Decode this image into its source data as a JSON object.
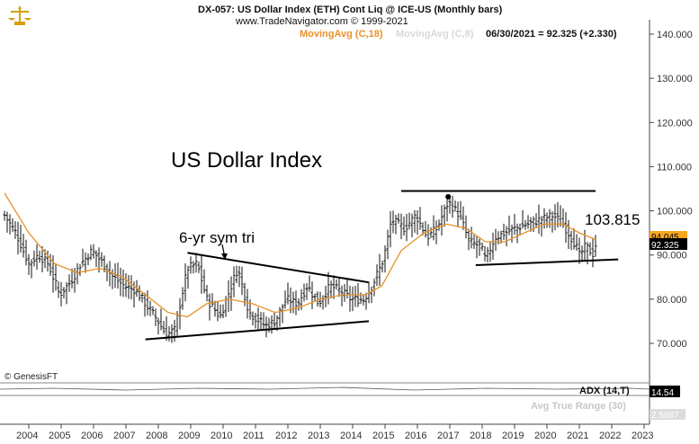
{
  "header": {
    "title": "DX-057:  US Dollar Index (ETH) Cont Liq @ ICE-US  (Monthly bars)",
    "source": "www.TradeNavigator.com © 1999-2021",
    "ma18_label": "MovingAvg (C,18)",
    "ma8_label": "MovingAvg (C,8)",
    "last_quote": "06/30/2021 = 92.325 (+2.330)"
  },
  "copyright": "© GenesisFT",
  "colors": {
    "ma18": "#e8922a",
    "ma8": "#bfbfbf",
    "bars": "#111111",
    "price_tag": "#000000",
    "ma_tag": "#f5a623"
  },
  "chart_data": {
    "type": "ohlc",
    "title": "US Dollar Index",
    "bar_interval": "monthly",
    "x_ticks": [
      "2004",
      "2005",
      "2006",
      "2007",
      "2008",
      "2009",
      "2010",
      "2011",
      "2012",
      "2013",
      "2014",
      "2015",
      "2016",
      "2017",
      "2018",
      "2019",
      "2020",
      "2021",
      "2022",
      "2023"
    ],
    "y_ticks": [
      "70.000",
      "80.000",
      "90.000",
      "100.000",
      "110.000",
      "120.000",
      "130.000",
      "140.000"
    ],
    "ylim": [
      64,
      142
    ],
    "xlim": [
      2003.2,
      2023.5
    ],
    "price_series": [
      {
        "t": 2003.25,
        "v": 99
      },
      {
        "t": 2003.6,
        "v": 95
      },
      {
        "t": 2004.0,
        "v": 88
      },
      {
        "t": 2004.3,
        "v": 90
      },
      {
        "t": 2004.6,
        "v": 88
      },
      {
        "t": 2004.95,
        "v": 81
      },
      {
        "t": 2005.3,
        "v": 84
      },
      {
        "t": 2005.6,
        "v": 88
      },
      {
        "t": 2005.95,
        "v": 91
      },
      {
        "t": 2006.3,
        "v": 88
      },
      {
        "t": 2006.6,
        "v": 85
      },
      {
        "t": 2006.95,
        "v": 83
      },
      {
        "t": 2007.3,
        "v": 82
      },
      {
        "t": 2007.6,
        "v": 79
      },
      {
        "t": 2007.9,
        "v": 76
      },
      {
        "t": 2008.25,
        "v": 72
      },
      {
        "t": 2008.5,
        "v": 73
      },
      {
        "t": 2008.9,
        "v": 87
      },
      {
        "t": 2009.2,
        "v": 88
      },
      {
        "t": 2009.5,
        "v": 80
      },
      {
        "t": 2009.9,
        "v": 76
      },
      {
        "t": 2010.1,
        "v": 80
      },
      {
        "t": 2010.45,
        "v": 87
      },
      {
        "t": 2010.8,
        "v": 77
      },
      {
        "t": 2011.3,
        "v": 74
      },
      {
        "t": 2011.6,
        "v": 75
      },
      {
        "t": 2011.95,
        "v": 80
      },
      {
        "t": 2012.3,
        "v": 79
      },
      {
        "t": 2012.6,
        "v": 83
      },
      {
        "t": 2012.95,
        "v": 79
      },
      {
        "t": 2013.3,
        "v": 83
      },
      {
        "t": 2013.6,
        "v": 82
      },
      {
        "t": 2013.95,
        "v": 80
      },
      {
        "t": 2014.35,
        "v": 80
      },
      {
        "t": 2014.6,
        "v": 83
      },
      {
        "t": 2014.95,
        "v": 89
      },
      {
        "t": 2015.2,
        "v": 98
      },
      {
        "t": 2015.6,
        "v": 96
      },
      {
        "t": 2015.95,
        "v": 99
      },
      {
        "t": 2016.3,
        "v": 94
      },
      {
        "t": 2016.6,
        "v": 96
      },
      {
        "t": 2016.95,
        "v": 102
      },
      {
        "t": 2017.3,
        "v": 99
      },
      {
        "t": 2017.6,
        "v": 93
      },
      {
        "t": 2017.95,
        "v": 92
      },
      {
        "t": 2018.1,
        "v": 89
      },
      {
        "t": 2018.4,
        "v": 94
      },
      {
        "t": 2018.7,
        "v": 95
      },
      {
        "t": 2019.0,
        "v": 96
      },
      {
        "t": 2019.4,
        "v": 97
      },
      {
        "t": 2019.8,
        "v": 98
      },
      {
        "t": 2020.2,
        "v": 99
      },
      {
        "t": 2020.5,
        "v": 97
      },
      {
        "t": 2020.9,
        "v": 92
      },
      {
        "t": 2021.0,
        "v": 90
      },
      {
        "t": 2021.2,
        "v": 92
      },
      {
        "t": 2021.45,
        "v": 90
      },
      {
        "t": 2021.5,
        "v": 92.3
      }
    ],
    "ma18_series": [
      {
        "t": 2003.25,
        "v": 104
      },
      {
        "t": 2004.0,
        "v": 95
      },
      {
        "t": 2004.8,
        "v": 88
      },
      {
        "t": 2005.5,
        "v": 86
      },
      {
        "t": 2006.2,
        "v": 87
      },
      {
        "t": 2006.9,
        "v": 85
      },
      {
        "t": 2007.6,
        "v": 81
      },
      {
        "t": 2008.3,
        "v": 77
      },
      {
        "t": 2008.9,
        "v": 76
      },
      {
        "t": 2009.5,
        "v": 79
      },
      {
        "t": 2010.2,
        "v": 80
      },
      {
        "t": 2010.9,
        "v": 79
      },
      {
        "t": 2011.6,
        "v": 77
      },
      {
        "t": 2012.3,
        "v": 78
      },
      {
        "t": 2013.0,
        "v": 80
      },
      {
        "t": 2013.7,
        "v": 81
      },
      {
        "t": 2014.4,
        "v": 81
      },
      {
        "t": 2014.9,
        "v": 83
      },
      {
        "t": 2015.5,
        "v": 91
      },
      {
        "t": 2016.2,
        "v": 95
      },
      {
        "t": 2016.9,
        "v": 97
      },
      {
        "t": 2017.5,
        "v": 96
      },
      {
        "t": 2018.1,
        "v": 93
      },
      {
        "t": 2018.7,
        "v": 93
      },
      {
        "t": 2019.3,
        "v": 95
      },
      {
        "t": 2019.9,
        "v": 97
      },
      {
        "t": 2020.5,
        "v": 97
      },
      {
        "t": 2021.0,
        "v": 95
      },
      {
        "t": 2021.5,
        "v": 93.5
      }
    ],
    "price_label": "92.325",
    "ma_label": "94.045",
    "annotations": {
      "main_label": "US Dollar Index",
      "triangle_label": "6-yr sym tri",
      "resistance_label": "103.815",
      "triangle_upper": [
        {
          "t": 2008.9,
          "v": 90.5
        },
        {
          "t": 2014.5,
          "v": 83.8
        }
      ],
      "triangle_lower": [
        {
          "t": 2007.6,
          "v": 70.9
        },
        {
          "t": 2014.5,
          "v": 75
        }
      ],
      "resistance": [
        {
          "t": 2015.5,
          "v": 104.5
        },
        {
          "t": 2021.5,
          "v": 104.5
        }
      ],
      "support": [
        {
          "t": 2017.8,
          "v": 87.7
        },
        {
          "t": 2022.2,
          "v": 89
        }
      ]
    }
  },
  "indicators": {
    "adx_label": "ADX (14,T)",
    "adx_value": "14.54",
    "atr_label": "Avg True Range (30)",
    "atr_value": "2.5887"
  }
}
